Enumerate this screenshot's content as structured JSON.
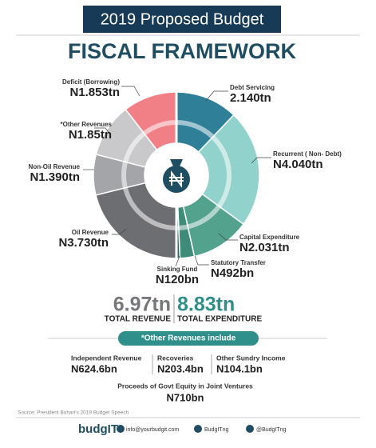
{
  "header": {
    "banner": "2019 Proposed Budget",
    "title": "FISCAL FRAMEWORK"
  },
  "chart_data": {
    "type": "pie",
    "series": [
      {
        "categories": [
          "Deficit (Borrowing)",
          "*Other Revenues",
          "Non-Oil Revenue",
          "Oil Revenue"
        ],
        "values": [
          1.853,
          1.85,
          1.39,
          3.73
        ],
        "value_labels": [
          "N1.853tn",
          "N1.85tn",
          "N1.390tn",
          "N3.730tn"
        ],
        "colors": [
          "#f07f86",
          "#c9c9cb",
          "#a4a5a8",
          "#6d6e72"
        ]
      },
      {
        "categories": [
          "Debt Servicing",
          "Recurrent ( Non- Debt)",
          "Capital Expenditure",
          "Statutory Transfer",
          "Sinking Fund"
        ],
        "values": [
          2.14,
          4.04,
          2.031,
          0.492,
          0.12
        ],
        "value_labels": [
          "2.140tn",
          "N4.040tn",
          "N2.031tn",
          "N492bn",
          "N120bn"
        ],
        "colors": [
          "#2f7f98",
          "#92d2cd",
          "#52a28e",
          "#3f8b79",
          "#2d6e60"
        ]
      }
    ]
  },
  "totals": {
    "revenue": "6.97tn",
    "revenue_label": "TOTAL REVENUE",
    "expenditure": "8.83tn",
    "expenditure_label": "TOTAL EXPENDITURE"
  },
  "other_revenues": {
    "title": "*Other Revenues include",
    "items": [
      {
        "name": "Independent Revenue",
        "value": "N624.6bn"
      },
      {
        "name": "Recoveries",
        "value": "N203.4bn"
      },
      {
        "name": "Other Sundry Income",
        "value": "N104.1bn"
      },
      {
        "name": "Proceeds of Govt Equity in Joint Ventures",
        "value": "N710bn"
      }
    ]
  },
  "source": "Source: President Buhari's 2019 Budget Speech",
  "footer": {
    "logo": "budgIT",
    "email": "info@yourbudgit.com",
    "facebook": "BudgITng",
    "twitter": "@BudgITng"
  }
}
